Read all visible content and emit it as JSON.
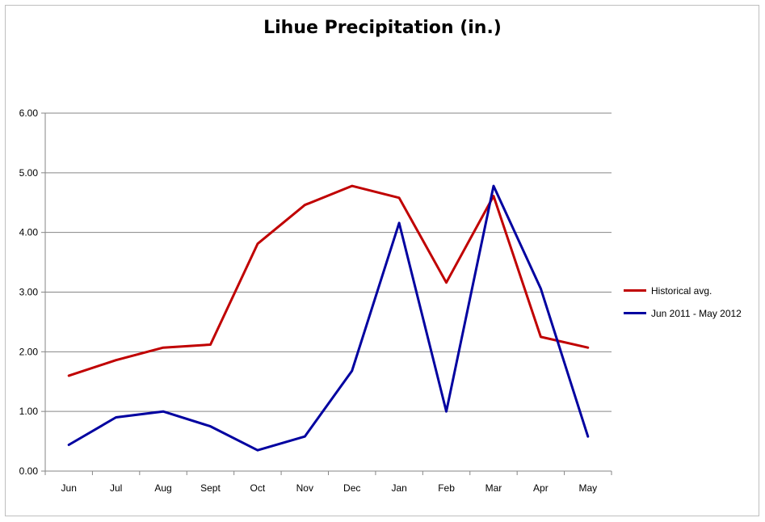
{
  "chart_data": {
    "type": "line",
    "title": "Lihue Precipitation (in.)",
    "xlabel": "",
    "ylabel": "",
    "categories": [
      "Jun",
      "Jul",
      "Aug",
      "Sept",
      "Oct",
      "Nov",
      "Dec",
      "Jan",
      "Feb",
      "Mar",
      "Apr",
      "May"
    ],
    "y_ticks": [
      "0.00",
      "1.00",
      "2.00",
      "3.00",
      "4.00",
      "5.00",
      "6.00"
    ],
    "ylim": [
      0,
      6
    ],
    "grid": "horizontal major gridlines",
    "legend_position": "right",
    "series": [
      {
        "name": "Historical avg.",
        "color": "#c00000",
        "values": [
          1.6,
          1.86,
          2.07,
          2.12,
          3.81,
          4.46,
          4.78,
          4.58,
          3.16,
          4.61,
          2.25,
          2.07
        ]
      },
      {
        "name": "Jun 2011 - May 2012",
        "color": "#0000a0",
        "values": [
          0.44,
          0.9,
          1.0,
          0.75,
          0.35,
          0.58,
          1.68,
          4.16,
          1.0,
          4.78,
          3.06,
          0.58
        ]
      }
    ]
  }
}
